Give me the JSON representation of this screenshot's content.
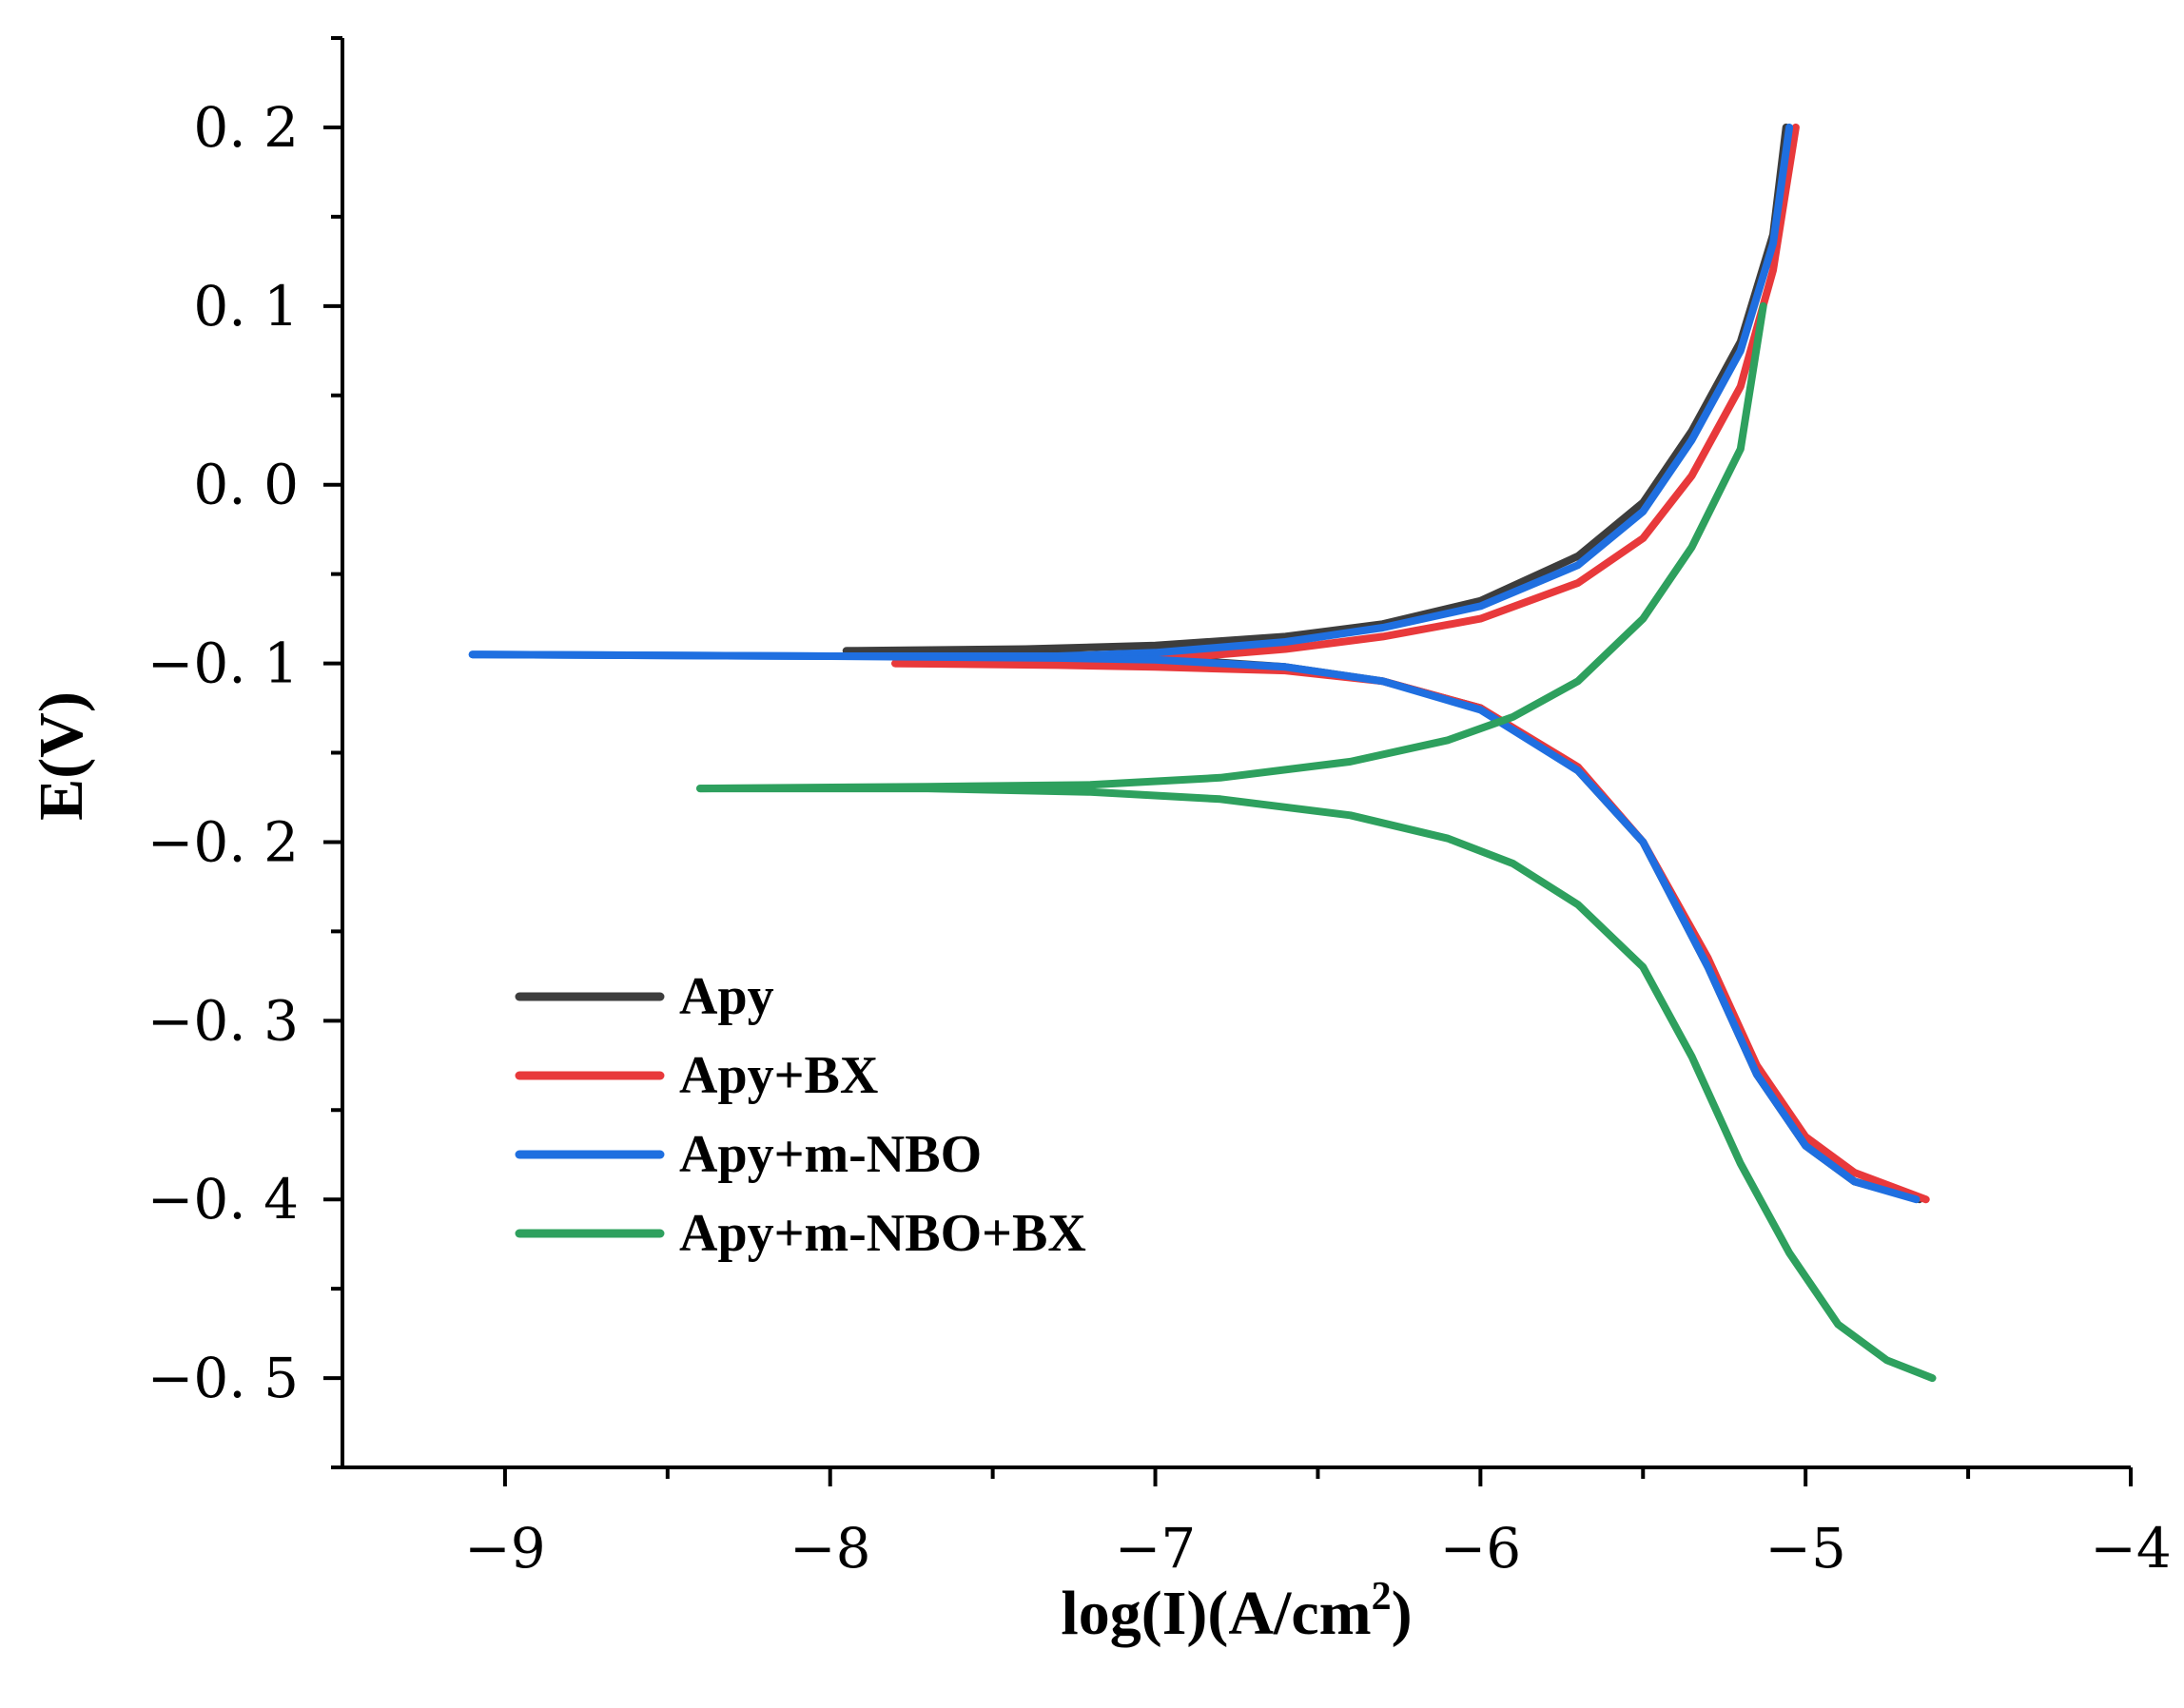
{
  "chart_data": {
    "type": "line",
    "title": "",
    "xlabel": "log(I)(A/cm",
    "xlabel_sup": "2",
    "xlabel_close": ")",
    "ylabel": "E(V)",
    "xlim": [
      -9.5,
      -4
    ],
    "ylim": [
      -0.55,
      0.25
    ],
    "xticks": [
      -9,
      -8,
      -7,
      -6,
      -5,
      -4
    ],
    "xtick_labels": [
      "−9",
      "−8",
      "−7",
      "−6",
      "−5",
      "−4"
    ],
    "yticks": [
      0.2,
      0.1,
      0.0,
      -0.1,
      -0.2,
      -0.3,
      -0.4,
      -0.5
    ],
    "ytick_labels": [
      "0. 2",
      "0. 1",
      "0. 0",
      "−0. 1",
      "−0. 2",
      "−0. 3",
      "−0. 4",
      "−0. 5"
    ],
    "legend_position": "lower-left",
    "series": [
      {
        "name": "Apy",
        "color": "#3d3d3d",
        "anodic": [
          [
            -7.95,
            -0.093
          ],
          [
            -7.4,
            -0.092
          ],
          [
            -7.0,
            -0.09
          ],
          [
            -6.6,
            -0.085
          ],
          [
            -6.3,
            -0.078
          ],
          [
            -6.0,
            -0.065
          ],
          [
            -5.7,
            -0.04
          ],
          [
            -5.5,
            -0.01
          ],
          [
            -5.35,
            0.03
          ],
          [
            -5.2,
            0.08
          ],
          [
            -5.1,
            0.14
          ],
          [
            -5.06,
            0.2
          ]
        ],
        "cathodic": [
          [
            -7.95,
            -0.093
          ],
          [
            -7.4,
            -0.094
          ],
          [
            -7.0,
            -0.097
          ],
          [
            -6.6,
            -0.102
          ],
          [
            -6.3,
            -0.11
          ],
          [
            -6.0,
            -0.125
          ],
          [
            -5.7,
            -0.16
          ],
          [
            -5.5,
            -0.2
          ],
          [
            -5.3,
            -0.27
          ],
          [
            -5.15,
            -0.33
          ],
          [
            -5.0,
            -0.37
          ],
          [
            -4.85,
            -0.39
          ],
          [
            -4.65,
            -0.4
          ]
        ]
      },
      {
        "name": "Apy+BX",
        "color": "#e8393b",
        "anodic": [
          [
            -7.8,
            -0.1
          ],
          [
            -7.3,
            -0.1
          ],
          [
            -7.0,
            -0.098
          ],
          [
            -6.6,
            -0.092
          ],
          [
            -6.3,
            -0.085
          ],
          [
            -6.0,
            -0.075
          ],
          [
            -5.7,
            -0.055
          ],
          [
            -5.5,
            -0.03
          ],
          [
            -5.35,
            0.005
          ],
          [
            -5.2,
            0.055
          ],
          [
            -5.1,
            0.12
          ],
          [
            -5.03,
            0.2
          ]
        ],
        "cathodic": [
          [
            -7.8,
            -0.1
          ],
          [
            -7.3,
            -0.101
          ],
          [
            -7.0,
            -0.102
          ],
          [
            -6.6,
            -0.104
          ],
          [
            -6.3,
            -0.11
          ],
          [
            -6.0,
            -0.125
          ],
          [
            -5.7,
            -0.158
          ],
          [
            -5.5,
            -0.2
          ],
          [
            -5.3,
            -0.265
          ],
          [
            -5.15,
            -0.325
          ],
          [
            -5.0,
            -0.365
          ],
          [
            -4.85,
            -0.385
          ],
          [
            -4.63,
            -0.4
          ]
        ]
      },
      {
        "name": "Apy+m-NBO",
        "color": "#1f6fe0",
        "anodic": [
          [
            -9.1,
            -0.095
          ],
          [
            -8.0,
            -0.096
          ],
          [
            -7.3,
            -0.096
          ],
          [
            -7.0,
            -0.094
          ],
          [
            -6.6,
            -0.088
          ],
          [
            -6.3,
            -0.08
          ],
          [
            -6.0,
            -0.068
          ],
          [
            -5.7,
            -0.045
          ],
          [
            -5.5,
            -0.015
          ],
          [
            -5.35,
            0.025
          ],
          [
            -5.2,
            0.075
          ],
          [
            -5.1,
            0.135
          ],
          [
            -5.05,
            0.2
          ]
        ],
        "cathodic": [
          [
            -9.1,
            -0.095
          ],
          [
            -8.0,
            -0.096
          ],
          [
            -7.3,
            -0.097
          ],
          [
            -7.0,
            -0.098
          ],
          [
            -6.6,
            -0.102
          ],
          [
            -6.3,
            -0.11
          ],
          [
            -6.0,
            -0.126
          ],
          [
            -5.7,
            -0.16
          ],
          [
            -5.5,
            -0.2
          ],
          [
            -5.3,
            -0.27
          ],
          [
            -5.15,
            -0.33
          ],
          [
            -5.0,
            -0.37
          ],
          [
            -4.85,
            -0.39
          ],
          [
            -4.66,
            -0.4
          ]
        ]
      },
      {
        "name": "Apy+m-NBO+BX",
        "color": "#2ea05e",
        "anodic": [
          [
            -8.4,
            -0.17
          ],
          [
            -7.7,
            -0.169
          ],
          [
            -7.2,
            -0.168
          ],
          [
            -6.8,
            -0.164
          ],
          [
            -6.4,
            -0.155
          ],
          [
            -6.1,
            -0.143
          ],
          [
            -5.9,
            -0.13
          ],
          [
            -5.7,
            -0.11
          ],
          [
            -5.5,
            -0.075
          ],
          [
            -5.35,
            -0.035
          ],
          [
            -5.2,
            0.02
          ],
          [
            -5.13,
            0.1
          ]
        ],
        "cathodic": [
          [
            -8.4,
            -0.17
          ],
          [
            -7.7,
            -0.17
          ],
          [
            -7.2,
            -0.172
          ],
          [
            -6.8,
            -0.176
          ],
          [
            -6.4,
            -0.185
          ],
          [
            -6.1,
            -0.198
          ],
          [
            -5.9,
            -0.212
          ],
          [
            -5.7,
            -0.235
          ],
          [
            -5.5,
            -0.27
          ],
          [
            -5.35,
            -0.32
          ],
          [
            -5.2,
            -0.38
          ],
          [
            -5.05,
            -0.43
          ],
          [
            -4.9,
            -0.47
          ],
          [
            -4.75,
            -0.49
          ],
          [
            -4.61,
            -0.5
          ]
        ]
      }
    ]
  }
}
